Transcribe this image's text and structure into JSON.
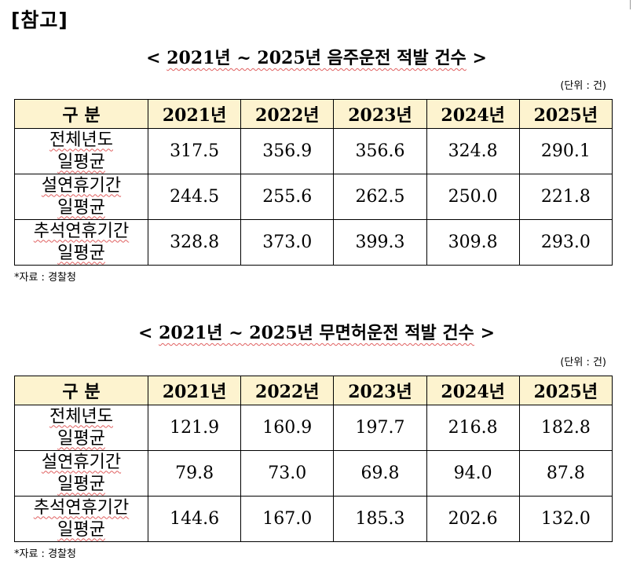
{
  "heading": "[참고]",
  "tables": [
    {
      "title_prefix": "<",
      "title_main": "2021년 ~ 2025년 음주운전 적발 건수",
      "title_suffix": ">",
      "unit": "(단위 : 건)",
      "columns": [
        "구 분",
        "2021년",
        "2022년",
        "2023년",
        "2024년",
        "2025년"
      ],
      "rows": [
        {
          "label_line1": "전체년도",
          "label_line2": "일평균",
          "values": [
            "317.5",
            "356.9",
            "356.6",
            "324.8",
            "290.1"
          ]
        },
        {
          "label_line1": "설연휴기간",
          "label_line2": "일평균",
          "values": [
            "244.5",
            "255.6",
            "262.5",
            "250.0",
            "221.8"
          ]
        },
        {
          "label_line1": "추석연휴기간",
          "label_line2": "일평균",
          "values": [
            "328.8",
            "373.0",
            "399.3",
            "309.8",
            "293.0"
          ]
        }
      ],
      "source": "*자료 : 경찰청"
    },
    {
      "title_prefix": "<",
      "title_main": "2021년 ~ 2025년 무면허운전 적발 건수",
      "title_suffix": ">",
      "unit": "(단위 : 건)",
      "columns": [
        "구 분",
        "2021년",
        "2022년",
        "2023년",
        "2024년",
        "2025년"
      ],
      "rows": [
        {
          "label_line1": "전체년도",
          "label_line2": "일평균",
          "values": [
            "121.9",
            "160.9",
            "197.7",
            "216.8",
            "182.8"
          ]
        },
        {
          "label_line1": "설연휴기간",
          "label_line2": "일평균",
          "values": [
            "79.8",
            "73.0",
            "69.8",
            "94.0",
            "87.8"
          ]
        },
        {
          "label_line1": "추석연휴기간",
          "label_line2": "일평균",
          "values": [
            "144.6",
            "167.0",
            "185.3",
            "202.6",
            "132.0"
          ]
        }
      ],
      "source": "*자료 : 경찰청"
    }
  ]
}
